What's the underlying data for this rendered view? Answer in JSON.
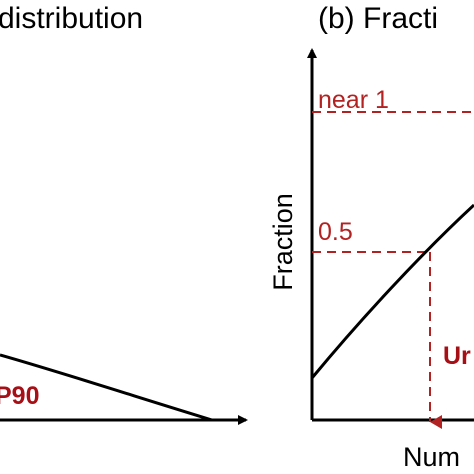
{
  "panel_a": {
    "title": "distribution",
    "label": "P90"
  },
  "panel_b": {
    "title": "(b) Fracti",
    "y_axis_label": "Fraction",
    "x_axis_label": "Num",
    "levels": [
      "near 1",
      "0.5"
    ],
    "label": "Ur"
  }
}
